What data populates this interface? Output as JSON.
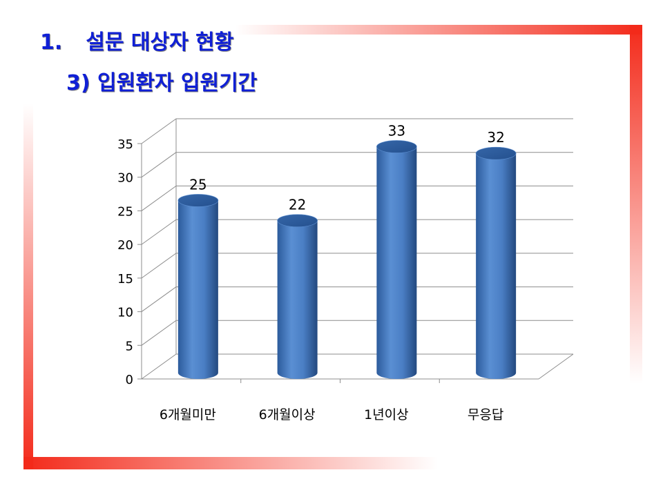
{
  "heading": {
    "number": "1.",
    "title": "설문 대상자 현황",
    "subtitle": "3) 입원환자 입원기간"
  },
  "colors": {
    "frame": "#f32a1a",
    "title": "#0f1fd6",
    "bar": "#4a7ec4"
  },
  "chart_data": {
    "type": "bar",
    "style": "3d-cylinder",
    "categories": [
      "6개월미만",
      "6개월이상",
      "1년이상",
      "무응답"
    ],
    "values": [
      25,
      22,
      33,
      32
    ],
    "ylim": [
      0,
      35
    ],
    "yticks": [
      0,
      5,
      10,
      15,
      20,
      25,
      30,
      35
    ],
    "grid": true,
    "legend": "none",
    "xlabel": "",
    "ylabel": ""
  }
}
